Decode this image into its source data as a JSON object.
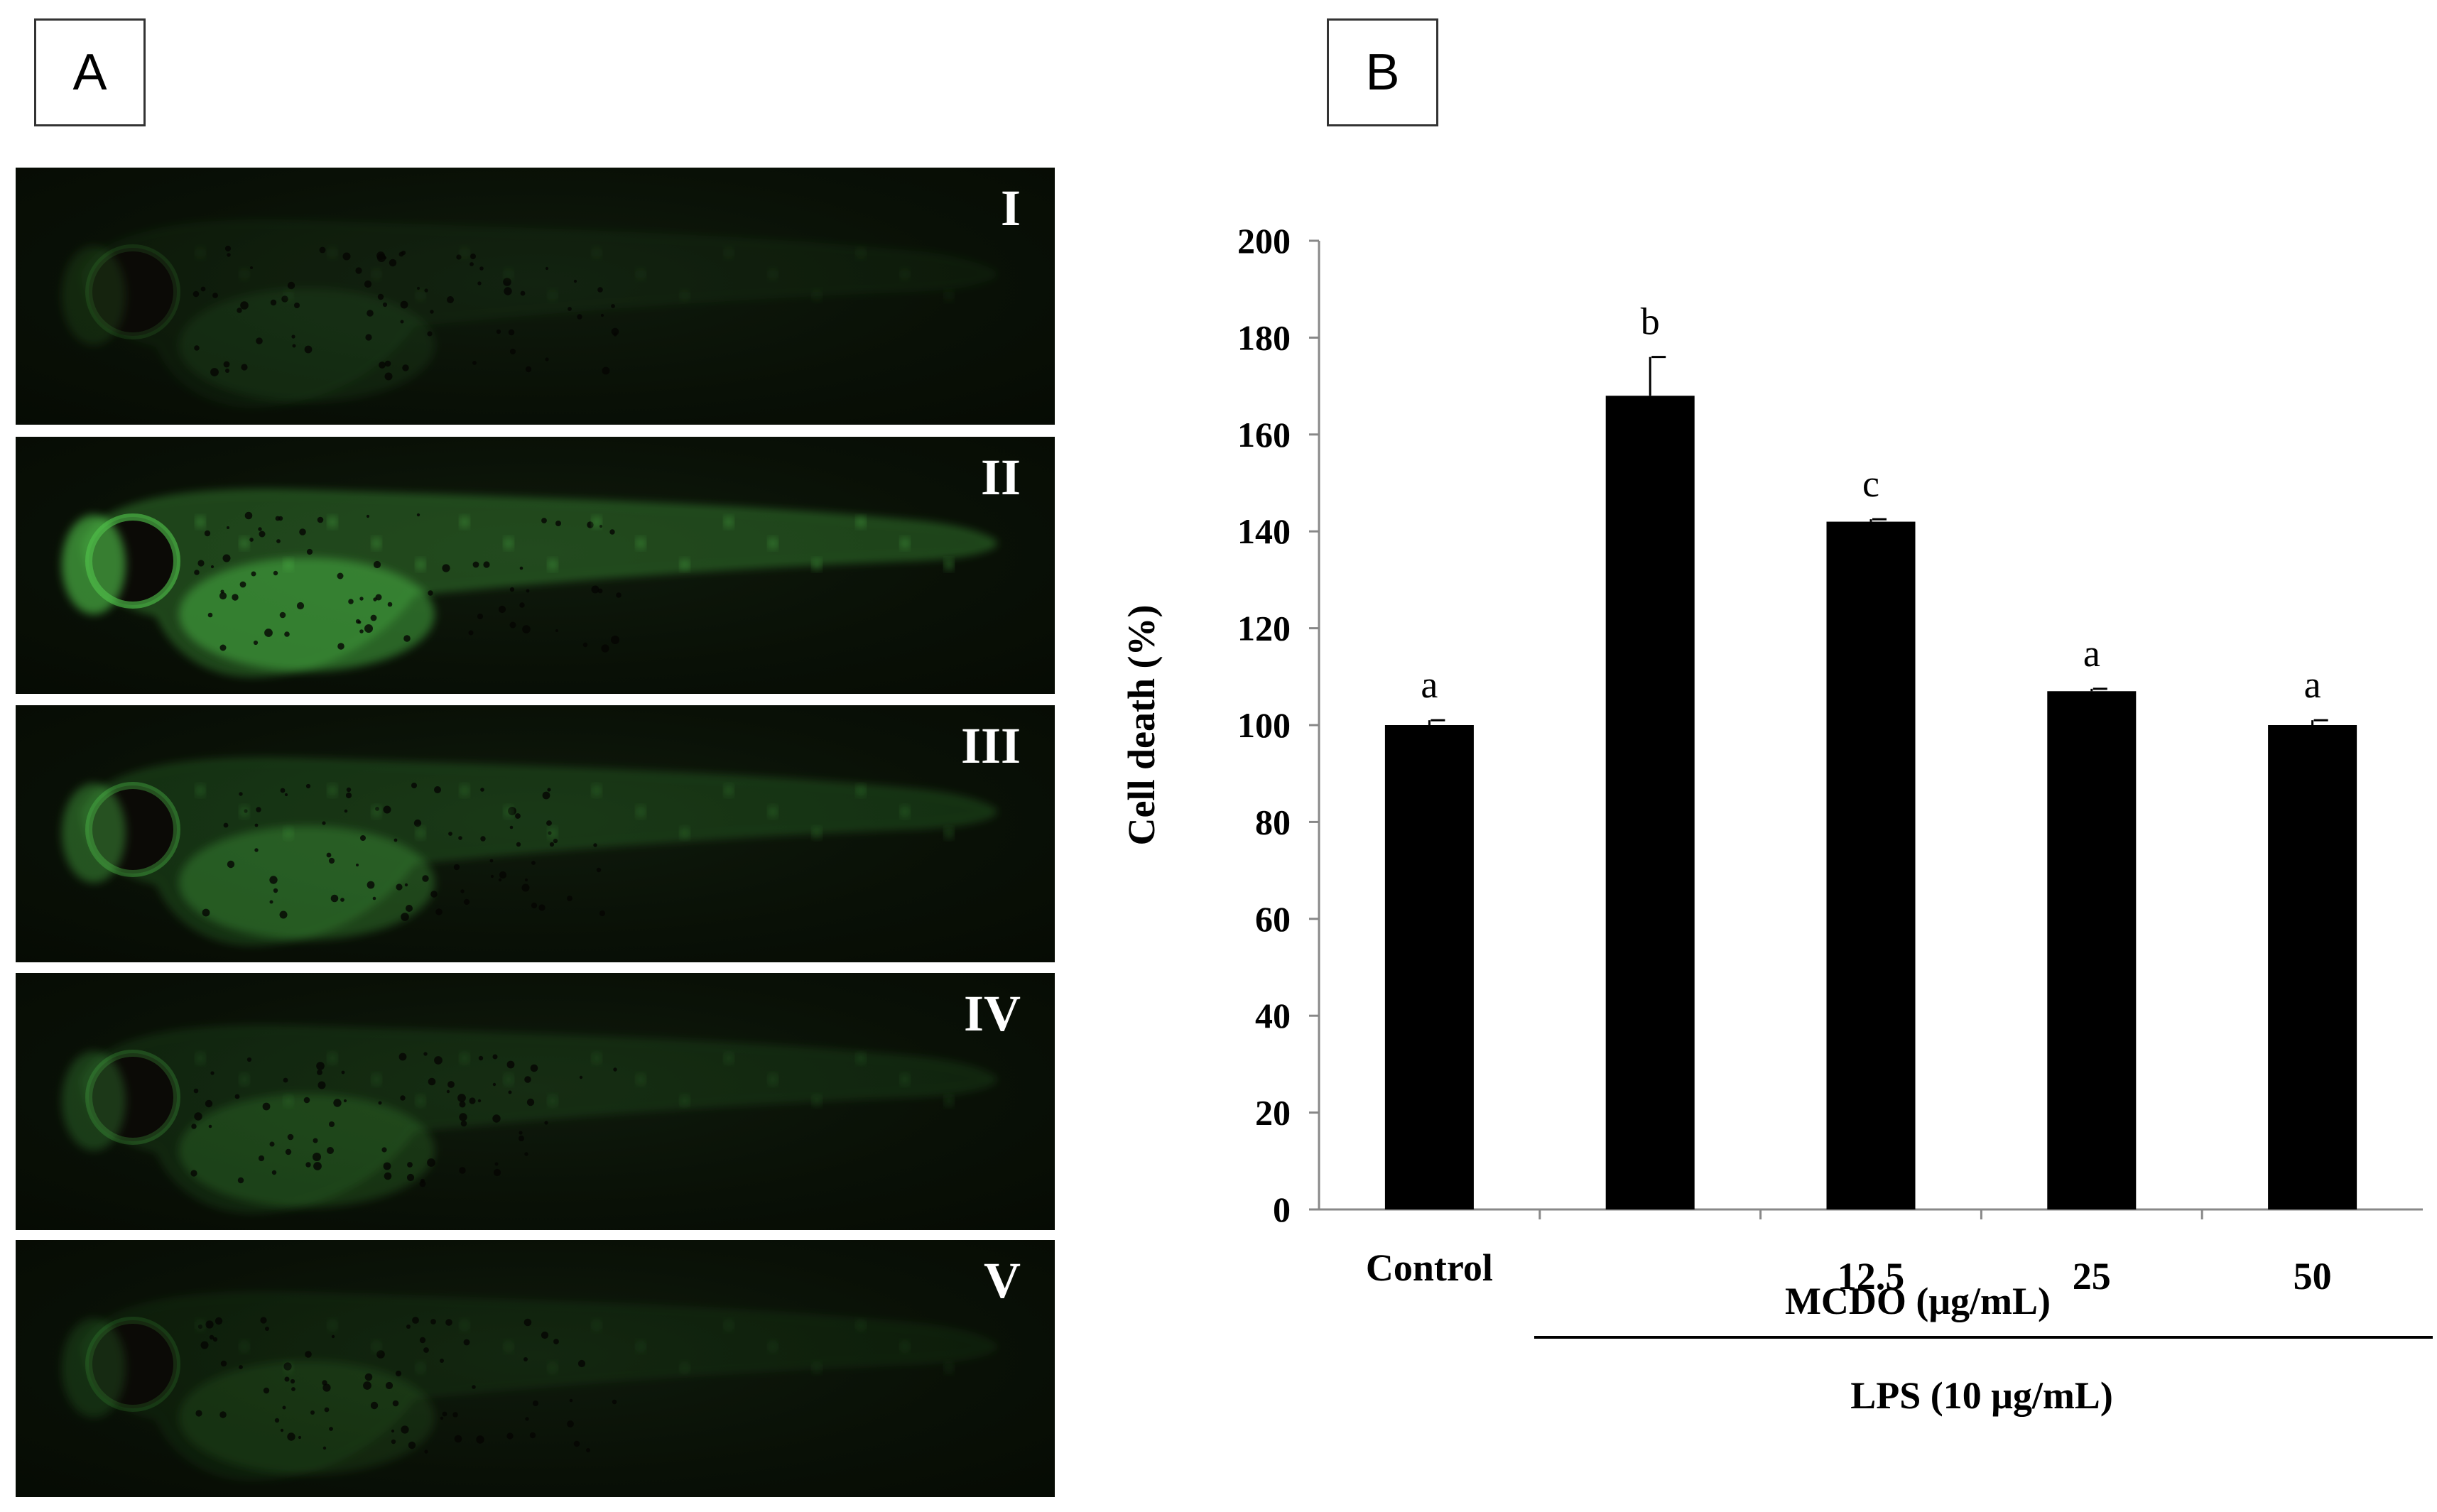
{
  "panel_labels": {
    "a": "A",
    "b": "B"
  },
  "panels": [
    {
      "roman": "I",
      "glow": 0.12
    },
    {
      "roman": "II",
      "glow": 0.95
    },
    {
      "roman": "III",
      "glow": 0.55
    },
    {
      "roman": "IV",
      "glow": 0.32
    },
    {
      "roman": "V",
      "glow": 0.18
    }
  ],
  "colors": {
    "fluorescence": "#4fc24a",
    "bar": "#000000"
  },
  "chart_data": {
    "type": "bar",
    "ylabel": "Cell death (%)",
    "ylim": [
      0,
      200
    ],
    "yticks": [
      0,
      20,
      40,
      60,
      80,
      100,
      120,
      140,
      160,
      180,
      200
    ],
    "categories": [
      "Control",
      "",
      "12.5",
      "25",
      "50"
    ],
    "values": [
      100,
      168,
      142,
      107,
      100
    ],
    "errors": [
      1,
      8,
      0.5,
      0.5,
      1
    ],
    "significance": [
      "a",
      "b",
      "c",
      "a",
      "a"
    ],
    "group_labels": {
      "mcdo": "MCDO (μg/mL)",
      "lps": "LPS (10 μg/mL)"
    }
  }
}
